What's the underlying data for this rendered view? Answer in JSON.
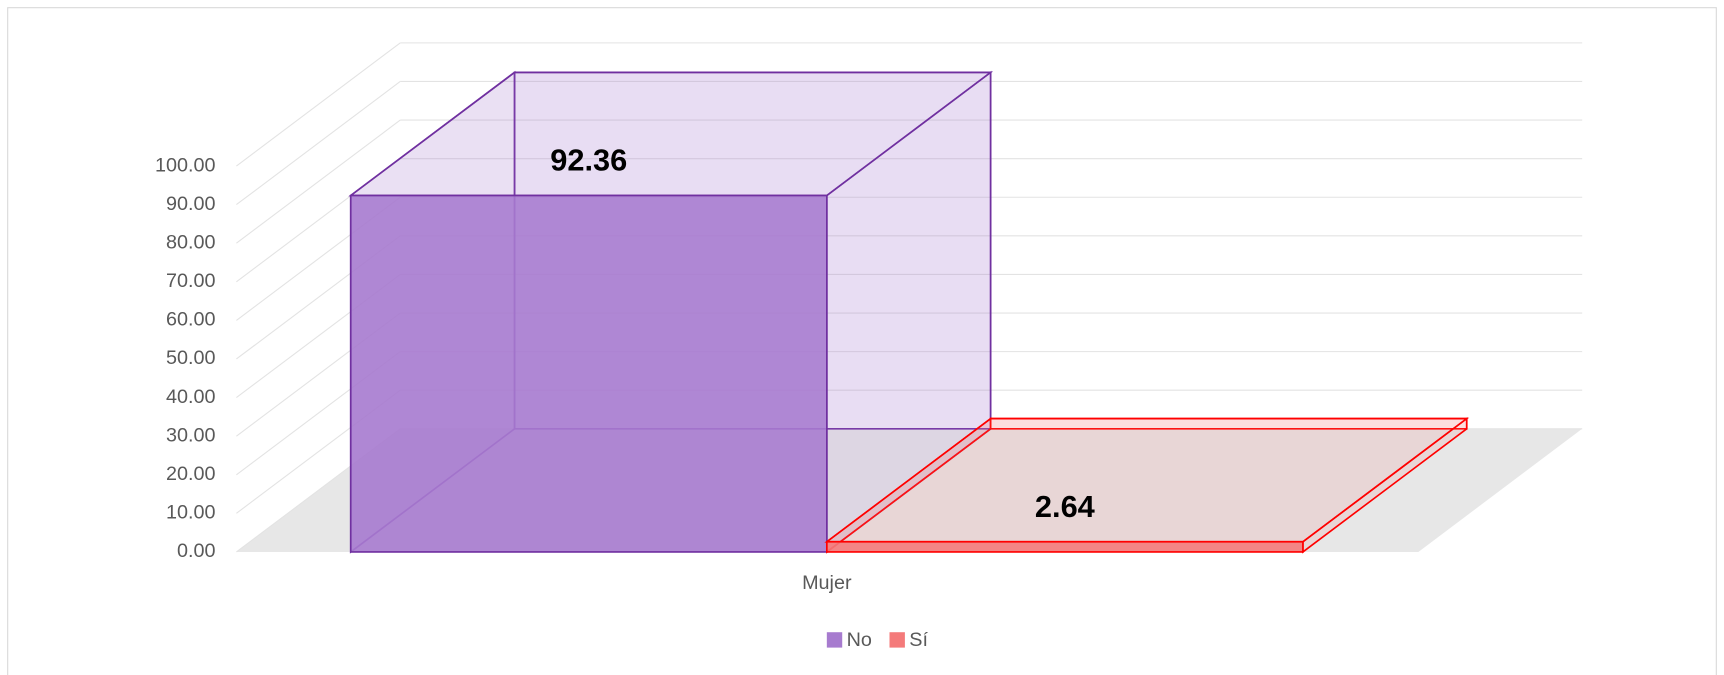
{
  "chart_data": {
    "type": "bar3d",
    "categories": [
      "Mujer"
    ],
    "series": [
      {
        "name": "No",
        "color": "#a77bcf",
        "stroke": "#7030a0",
        "values": [
          92.36
        ]
      },
      {
        "name": "Sí",
        "color": "#f47a7a",
        "stroke": "#ff0000",
        "values": [
          2.64
        ]
      }
    ],
    "ylim": [
      0,
      100
    ],
    "yticks": [
      {
        "value": 0,
        "label": "0.00"
      },
      {
        "value": 10,
        "label": "10.00"
      },
      {
        "value": 20,
        "label": "20.00"
      },
      {
        "value": 30,
        "label": "30.00"
      },
      {
        "value": 40,
        "label": "40.00"
      },
      {
        "value": 50,
        "label": "50.00"
      },
      {
        "value": 60,
        "label": "60.00"
      },
      {
        "value": 70,
        "label": "70.00"
      },
      {
        "value": 80,
        "label": "80.00"
      },
      {
        "value": 90,
        "label": "90.00"
      },
      {
        "value": 100,
        "label": "100.00"
      }
    ],
    "grid": true,
    "legend": "bottom"
  }
}
